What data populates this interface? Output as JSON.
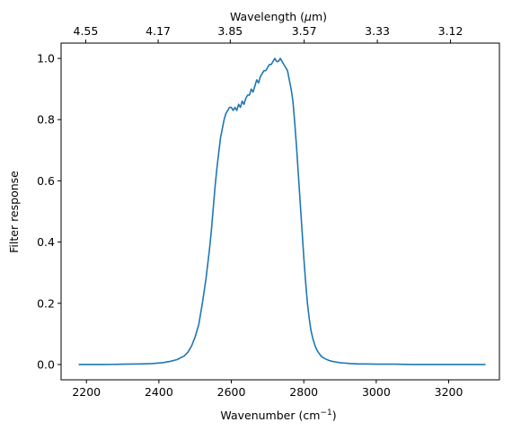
{
  "chart_data": {
    "type": "line",
    "title": "",
    "xlabel": "Wavenumber (cm",
    "xlabel_sup": "−1",
    "xlabel_tail": ")",
    "ylabel": "Filter response",
    "top_xlabel": "Wavelength (",
    "top_xlabel_mu": "μ",
    "top_xlabel_tail": "m)",
    "xlim": [
      2130,
      3340
    ],
    "ylim": [
      -0.05,
      1.05
    ],
    "xticks": [
      2200,
      2400,
      2600,
      2800,
      3000,
      3200
    ],
    "xtick_labels": [
      "2200",
      "2400",
      "2600",
      "2800",
      "3000",
      "3200"
    ],
    "yticks": [
      0.0,
      0.2,
      0.4,
      0.6,
      0.8,
      1.0
    ],
    "ytick_labels": [
      "0.0",
      "0.2",
      "0.4",
      "0.6",
      "0.8",
      "1.0"
    ],
    "top_xticks": [
      2198,
      2398,
      2597,
      2801,
      3003,
      3205
    ],
    "top_xtick_labels": [
      "4.55",
      "4.17",
      "3.85",
      "3.57",
      "3.33",
      "3.12"
    ],
    "grid": false,
    "line_color": "#1f77b4",
    "series": [
      {
        "x": [
          2180,
          2250,
          2300,
          2350,
          2380,
          2410,
          2430,
          2450,
          2470,
          2480,
          2490,
          2500,
          2510,
          2520,
          2530,
          2540,
          2545,
          2550,
          2555,
          2560,
          2565,
          2570,
          2575,
          2580,
          2585,
          2590,
          2595,
          2600,
          2605,
          2610,
          2615,
          2620,
          2625,
          2630,
          2635,
          2640,
          2645,
          2650,
          2655,
          2660,
          2665,
          2670,
          2675,
          2680,
          2685,
          2690,
          2695,
          2700,
          2705,
          2710,
          2715,
          2720,
          2725,
          2730,
          2735,
          2740,
          2745,
          2750,
          2755,
          2760,
          2765,
          2770,
          2775,
          2780,
          2785,
          2790,
          2795,
          2800,
          2805,
          2810,
          2815,
          2820,
          2825,
          2830,
          2835,
          2840,
          2845,
          2850,
          2860,
          2870,
          2880,
          2890,
          2900,
          2910,
          2920,
          2930,
          2950,
          2970,
          3000,
          3050,
          3100,
          3200,
          3300
        ],
        "y": [
          0.0,
          0.0,
          0.001,
          0.002,
          0.003,
          0.006,
          0.01,
          0.016,
          0.028,
          0.04,
          0.06,
          0.09,
          0.13,
          0.2,
          0.28,
          0.38,
          0.44,
          0.51,
          0.58,
          0.64,
          0.69,
          0.74,
          0.77,
          0.8,
          0.82,
          0.83,
          0.84,
          0.84,
          0.83,
          0.84,
          0.83,
          0.85,
          0.84,
          0.86,
          0.85,
          0.87,
          0.88,
          0.88,
          0.9,
          0.89,
          0.91,
          0.93,
          0.92,
          0.94,
          0.95,
          0.96,
          0.96,
          0.97,
          0.98,
          0.98,
          0.99,
          1.0,
          0.99,
          0.99,
          1.0,
          0.99,
          0.98,
          0.97,
          0.96,
          0.93,
          0.9,
          0.86,
          0.79,
          0.71,
          0.62,
          0.53,
          0.44,
          0.35,
          0.27,
          0.2,
          0.15,
          0.11,
          0.085,
          0.065,
          0.05,
          0.04,
          0.032,
          0.025,
          0.018,
          0.013,
          0.01,
          0.008,
          0.006,
          0.005,
          0.004,
          0.003,
          0.002,
          0.002,
          0.001,
          0.001,
          0.0,
          0.0,
          0.0
        ]
      }
    ]
  }
}
